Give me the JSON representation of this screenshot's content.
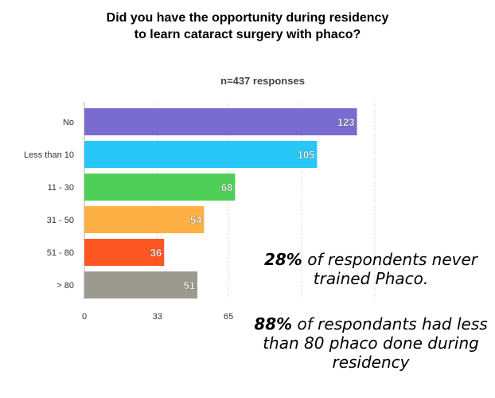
{
  "chart_data": {
    "type": "bar",
    "orientation": "horizontal",
    "title_lines": [
      "Did you have the opportunity during residency",
      "to learn cataract surgery with phaco?"
    ],
    "subtitle": "n=437 responses",
    "categories": [
      "No",
      "Less than 10",
      "11 - 30",
      "31 - 50",
      "51 - 80",
      "> 80"
    ],
    "values": [
      123,
      105,
      68,
      54,
      36,
      51
    ],
    "value_labels": [
      "123",
      "105",
      "68",
      "54",
      "36",
      "51"
    ],
    "colors": [
      "#7a6bd0",
      "#27c8f7",
      "#4fcf57",
      "#fdb043",
      "#fc5622",
      "#9c9a8f"
    ],
    "xticks": [
      0,
      33,
      65
    ],
    "xtick_labels": [
      "0",
      "33",
      "65"
    ],
    "xlim": [
      0,
      131
    ],
    "grid": true
  },
  "notes": [
    {
      "highlight": "28%",
      "text": " of respondents never trained Phaco."
    },
    {
      "highlight": "88%",
      "text": " of respondants had less than 80 phaco done during residency"
    }
  ]
}
